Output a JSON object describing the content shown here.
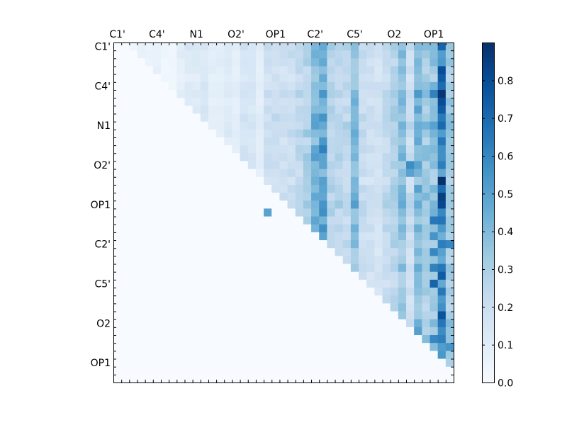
{
  "chart_data": {
    "type": "heatmap",
    "title": "",
    "xlabel": "",
    "ylabel": "",
    "size": 43,
    "x_tick_labels": [
      "C1'",
      "C4'",
      "N1",
      "O2'",
      "OP1",
      "C2'",
      "C5'",
      "O2",
      "OP1"
    ],
    "y_tick_labels": [
      "C1'",
      "C4'",
      "N1",
      "O2'",
      "OP1",
      "C2'",
      "C5'",
      "O2",
      "OP1"
    ],
    "x_label_positions": [
      0.5,
      5.5,
      10.5,
      15.5,
      20.5,
      25.5,
      30.5,
      35.5,
      40.5
    ],
    "y_label_positions": [
      0.5,
      5.5,
      10.5,
      15.5,
      20.5,
      25.5,
      30.5,
      35.5,
      40.5
    ],
    "colorbar": {
      "min": 0.0,
      "max": 0.9,
      "tick_values": [
        0.0,
        0.1,
        0.2,
        0.3,
        0.4,
        0.5,
        0.6,
        0.7,
        0.8
      ],
      "tick_labels": [
        "0.0",
        "0.1",
        "0.2",
        "0.3",
        "0.4",
        "0.5",
        "0.6",
        "0.7",
        "0.8"
      ],
      "colormap": "Blues"
    },
    "column_profile": [
      0.02,
      0.1,
      0.05,
      0.08,
      0.06,
      0.08,
      0.04,
      0.04,
      0.1,
      0.13,
      0.12,
      0.14,
      0.1,
      0.1,
      0.12,
      0.1,
      0.16,
      0.14,
      0.1,
      0.2,
      0.22,
      0.2,
      0.22,
      0.25,
      0.3,
      0.45,
      0.5,
      0.28,
      0.26,
      0.25,
      0.42,
      0.22,
      0.2,
      0.18,
      0.24,
      0.3,
      0.4,
      0.22,
      0.45,
      0.35,
      0.38,
      0.62,
      0.35
    ],
    "row_factor": [
      1.0,
      0.95,
      0.9,
      0.85,
      0.8,
      0.95,
      1.0,
      0.9,
      0.95,
      1.0,
      1.05,
      1.0,
      0.9,
      0.95,
      1.0,
      0.95,
      0.9,
      0.85,
      0.95,
      1.0,
      1.1,
      1.0,
      0.9,
      0.95,
      0.85,
      0.9,
      0.8,
      0.85,
      0.9,
      0.85,
      0.8,
      0.9,
      0.85,
      0.8,
      0.9,
      1.0,
      0.95,
      1.0,
      0.9,
      0.85,
      0.9,
      0.7,
      0.6
    ],
    "highlights": [
      [
        0,
        41,
        0.72
      ],
      [
        3,
        41,
        0.8
      ],
      [
        4,
        41,
        0.75
      ],
      [
        6,
        41,
        0.88
      ],
      [
        7,
        41,
        0.8
      ],
      [
        8,
        41,
        0.75
      ],
      [
        10,
        41,
        0.7
      ],
      [
        13,
        26,
        0.62
      ],
      [
        17,
        41,
        0.9
      ],
      [
        19,
        41,
        0.85
      ],
      [
        20,
        41,
        0.82
      ],
      [
        21,
        41,
        0.6
      ],
      [
        22,
        40,
        0.65
      ],
      [
        24,
        40,
        0.55
      ],
      [
        26,
        40,
        0.6
      ],
      [
        28,
        40,
        0.62
      ],
      [
        29,
        41,
        0.75
      ],
      [
        30,
        40,
        0.72
      ],
      [
        31,
        41,
        0.65
      ],
      [
        34,
        41,
        0.78
      ],
      [
        36,
        41,
        0.58
      ],
      [
        37,
        40,
        0.6
      ],
      [
        38,
        42,
        0.55
      ],
      [
        25,
        42,
        0.6
      ],
      [
        16,
        37,
        0.5
      ],
      [
        15,
        37,
        0.58
      ],
      [
        21,
        19,
        0.5
      ],
      [
        6,
        40,
        0.62
      ],
      [
        10,
        40,
        0.5
      ],
      [
        14,
        42,
        0.35
      ]
    ]
  }
}
